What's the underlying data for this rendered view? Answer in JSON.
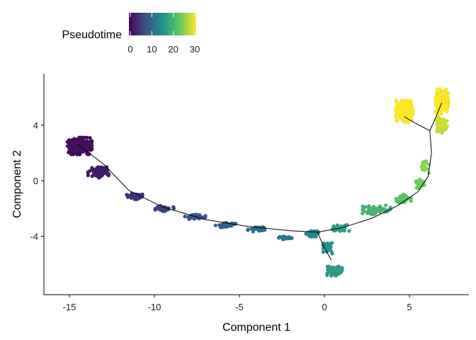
{
  "chart_data": {
    "type": "scatter",
    "title": "",
    "xlabel": "Component 1",
    "ylabel": "Component 2",
    "xlim": [
      -16.5,
      8.5
    ],
    "ylim": [
      -8.2,
      7.7
    ],
    "x_ticks": [
      -15,
      -10,
      -5,
      0,
      5
    ],
    "x_tick_labels": [
      "-15",
      "-10",
      "-5",
      "0",
      "5"
    ],
    "y_ticks": [
      -4,
      0,
      4
    ],
    "y_tick_labels": [
      "-4",
      "0",
      "4"
    ],
    "grid": false,
    "color_scale": {
      "title": "Pseudotime",
      "range": [
        0,
        30
      ],
      "ticks": [
        0,
        10,
        20,
        30
      ],
      "tick_labels": [
        "0",
        "10",
        "20",
        "30"
      ],
      "palette": "viridis",
      "colors": [
        "#440154",
        "#3b528b",
        "#21908c",
        "#5dc863",
        "#fde725"
      ],
      "placement": "top-left"
    },
    "trajectory": [
      [
        [
          -14.5,
          2.6
        ],
        [
          -13.0,
          1.2
        ],
        [
          -11.5,
          -0.7
        ],
        [
          -9.5,
          -1.9
        ],
        [
          -7.0,
          -2.8
        ],
        [
          -4.5,
          -3.3
        ],
        [
          -2.0,
          -3.6
        ],
        [
          -0.4,
          -3.7
        ],
        [
          1.0,
          -3.4
        ],
        [
          2.8,
          -2.7
        ],
        [
          4.3,
          -1.8
        ],
        [
          5.5,
          -0.8
        ],
        [
          6.1,
          0.3
        ],
        [
          6.3,
          2.0
        ],
        [
          6.2,
          3.6
        ]
      ],
      [
        [
          -0.4,
          -3.7
        ],
        [
          -0.1,
          -4.6
        ],
        [
          0.4,
          -5.7
        ]
      ],
      [
        [
          6.2,
          3.6
        ],
        [
          5.4,
          4.1
        ],
        [
          4.7,
          4.6
        ]
      ],
      [
        [
          6.2,
          3.6
        ],
        [
          6.6,
          4.7
        ],
        [
          6.9,
          5.6
        ]
      ]
    ],
    "clusters": [
      {
        "x": -14.4,
        "y": 2.5,
        "sx": 0.65,
        "sy": 0.55,
        "n": 260,
        "t0": 0,
        "t1": 1.5
      },
      {
        "x": -13.3,
        "y": 0.6,
        "sx": 0.55,
        "sy": 0.35,
        "n": 70,
        "t0": 1.5,
        "t1": 3
      },
      {
        "x": -11.2,
        "y": -1.1,
        "sx": 0.45,
        "sy": 0.22,
        "n": 40,
        "t0": 4,
        "t1": 5
      },
      {
        "x": -9.4,
        "y": -2.0,
        "sx": 0.5,
        "sy": 0.18,
        "n": 35,
        "t0": 5.5,
        "t1": 6.5
      },
      {
        "x": -7.6,
        "y": -2.6,
        "sx": 0.55,
        "sy": 0.15,
        "n": 45,
        "t0": 7,
        "t1": 8
      },
      {
        "x": -5.8,
        "y": -3.2,
        "sx": 0.55,
        "sy": 0.15,
        "n": 45,
        "t0": 8.5,
        "t1": 9.5
      },
      {
        "x": -4.0,
        "y": -3.5,
        "sx": 0.5,
        "sy": 0.15,
        "n": 35,
        "t0": 10,
        "t1": 11
      },
      {
        "x": -2.3,
        "y": -4.1,
        "sx": 0.35,
        "sy": 0.1,
        "n": 20,
        "t0": 11.5,
        "t1": 12
      },
      {
        "x": -0.7,
        "y": -3.8,
        "sx": 0.35,
        "sy": 0.2,
        "n": 45,
        "t0": 13,
        "t1": 14
      },
      {
        "x": 0.2,
        "y": -4.8,
        "sx": 0.25,
        "sy": 0.4,
        "n": 35,
        "t0": 14.5,
        "t1": 15.5
      },
      {
        "x": 0.6,
        "y": -6.5,
        "sx": 0.4,
        "sy": 0.3,
        "n": 90,
        "t0": 15.5,
        "t1": 16.5
      },
      {
        "x": 0.9,
        "y": -3.4,
        "sx": 0.5,
        "sy": 0.2,
        "n": 30,
        "t0": 16,
        "t1": 17
      },
      {
        "x": 3.0,
        "y": -2.1,
        "sx": 0.8,
        "sy": 0.3,
        "n": 70,
        "t0": 18,
        "t1": 20
      },
      {
        "x": 4.6,
        "y": -1.3,
        "sx": 0.45,
        "sy": 0.3,
        "n": 40,
        "t0": 20.5,
        "t1": 22
      },
      {
        "x": 5.6,
        "y": -0.2,
        "sx": 0.25,
        "sy": 0.3,
        "n": 25,
        "t0": 22.5,
        "t1": 23.5
      },
      {
        "x": 5.9,
        "y": 1.0,
        "sx": 0.25,
        "sy": 0.4,
        "n": 25,
        "t0": 24,
        "t1": 25
      },
      {
        "x": 4.7,
        "y": 5.0,
        "sx": 0.45,
        "sy": 0.7,
        "n": 170,
        "t0": 28,
        "t1": 31
      },
      {
        "x": 6.9,
        "y": 5.7,
        "sx": 0.35,
        "sy": 0.8,
        "n": 160,
        "t0": 28,
        "t1": 31
      },
      {
        "x": 6.9,
        "y": 4.0,
        "sx": 0.3,
        "sy": 0.5,
        "n": 60,
        "t0": 26,
        "t1": 28
      }
    ]
  }
}
